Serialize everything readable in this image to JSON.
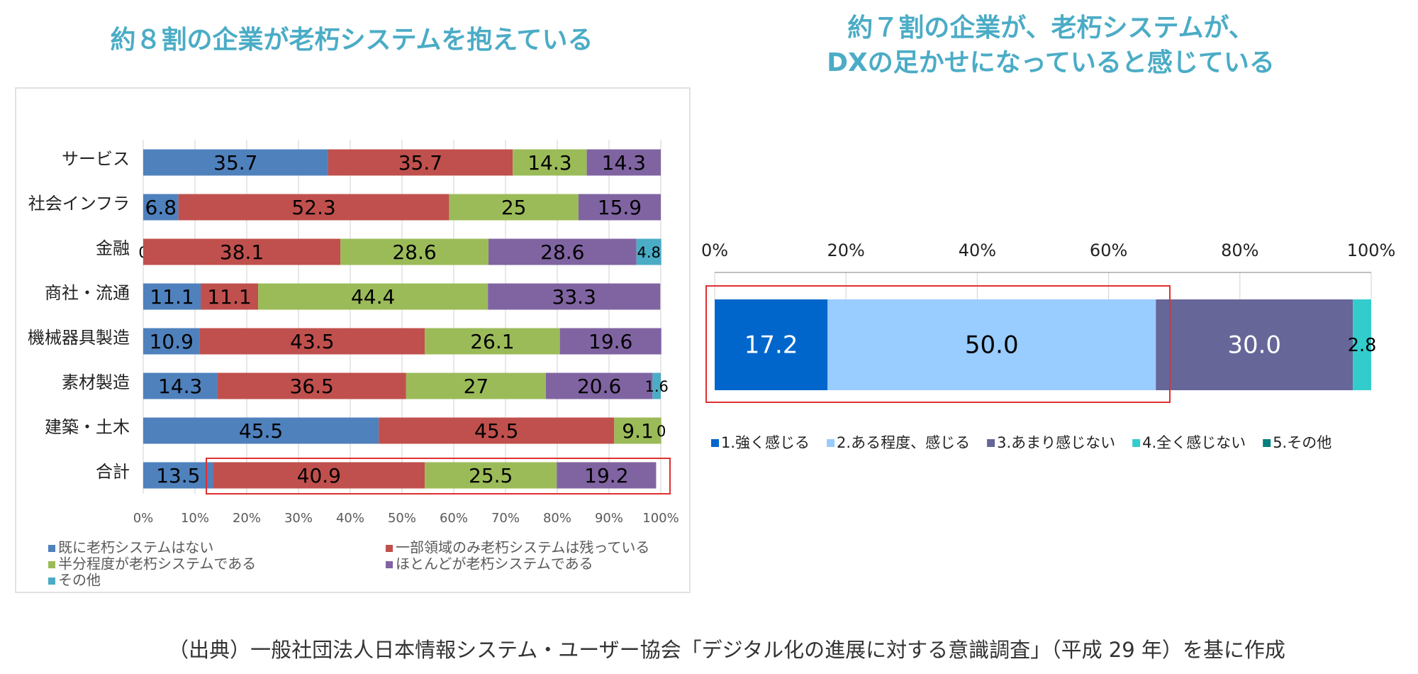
{
  "chart_data": [
    {
      "type": "bar",
      "orientation": "horizontal",
      "stacked": true,
      "title": [
        "約８割の企業が老朽システムを抱えている"
      ],
      "categories": [
        "サービス",
        "社会インフラ",
        "金融",
        "商社・流通",
        "機械器具製造",
        "素材製造",
        "建築・土木",
        "合計"
      ],
      "series": [
        {
          "name": "既に老朽システムはない",
          "color": "#4f81bd",
          "label_color": "#000000",
          "values": [
            35.7,
            6.8,
            0,
            11.1,
            10.9,
            14.3,
            45.5,
            13.5
          ]
        },
        {
          "name": "一部領域のみ老朽システムは残っている",
          "color": "#c0504d",
          "label_color": "#000000",
          "values": [
            35.7,
            52.3,
            38.1,
            11.1,
            43.5,
            36.5,
            45.5,
            40.9
          ]
        },
        {
          "name": "半分程度が老朽システムである",
          "color": "#9bbb59",
          "label_color": "#000000",
          "values": [
            14.3,
            25,
            28.6,
            44.4,
            26.1,
            27,
            9.1,
            25.5
          ]
        },
        {
          "name": "ほとんどが老朽システムである",
          "color": "#8064a2",
          "label_color": "#000000",
          "values": [
            14.3,
            15.9,
            28.6,
            33.3,
            19.6,
            20.6,
            0,
            19.2
          ]
        },
        {
          "name": "その他",
          "color": "#4bacc6",
          "label_color": "#000000",
          "values": [
            null,
            null,
            4.8,
            null,
            null,
            1.6,
            null,
            null
          ]
        }
      ],
      "xlim": [
        0,
        100
      ],
      "xticks": [
        {
          "value": 0,
          "label": "0%"
        },
        {
          "value": 10,
          "label": "10%"
        },
        {
          "value": 20,
          "label": "20%"
        },
        {
          "value": 30,
          "label": "30%"
        },
        {
          "value": 40,
          "label": "40%"
        },
        {
          "value": 50,
          "label": "50%"
        },
        {
          "value": 60,
          "label": "60%"
        },
        {
          "value": 70,
          "label": "70%"
        },
        {
          "value": 80,
          "label": "80%"
        },
        {
          "value": 90,
          "label": "90%"
        },
        {
          "value": 100,
          "label": "100%"
        }
      ],
      "grid": true,
      "legend": "bottom"
    },
    {
      "type": "bar",
      "orientation": "horizontal",
      "stacked": true,
      "title": [
        "約７割の企業が、老朽システムが、",
        "DXの足かせになっていると感じている"
      ],
      "categories": [
        null
      ],
      "series": [
        {
          "name": "1.強く感じる",
          "color": "#0066cc",
          "label_color": "#ffffff",
          "values": [
            17.2
          ],
          "value_labels": [
            "17.2"
          ]
        },
        {
          "name": "2.ある程度、感じる",
          "color": "#99ccff",
          "label_color": "#000000",
          "values": [
            50.0
          ],
          "value_labels": [
            "50.0"
          ]
        },
        {
          "name": "3.あまり感じない",
          "color": "#666699",
          "label_color": "#ffffff",
          "values": [
            30.0
          ],
          "value_labels": [
            "30.0"
          ]
        },
        {
          "name": "4.全く感じない",
          "color": "#33cccc",
          "label_color": "#000000",
          "values": [
            2.8
          ],
          "value_labels": [
            "2.8"
          ]
        },
        {
          "name": "5.その他",
          "color": "#008080",
          "label_color": "#000000",
          "values": [
            null
          ]
        }
      ],
      "xlim": [
        0,
        100
      ],
      "xticks": [
        {
          "value": 0,
          "label": "0%"
        },
        {
          "value": 20,
          "label": "20%"
        },
        {
          "value": 40,
          "label": "40%"
        },
        {
          "value": 60,
          "label": "60%"
        },
        {
          "value": 80,
          "label": "80%"
        },
        {
          "value": 100,
          "label": "100%"
        }
      ],
      "grid": true,
      "legend": "bottom"
    }
  ],
  "footnote": "（出典）一般社団法人日本情報システム・ユーザー協会「デジタル化の進展に対する意識調査」（平成 29 年）を基に作成"
}
